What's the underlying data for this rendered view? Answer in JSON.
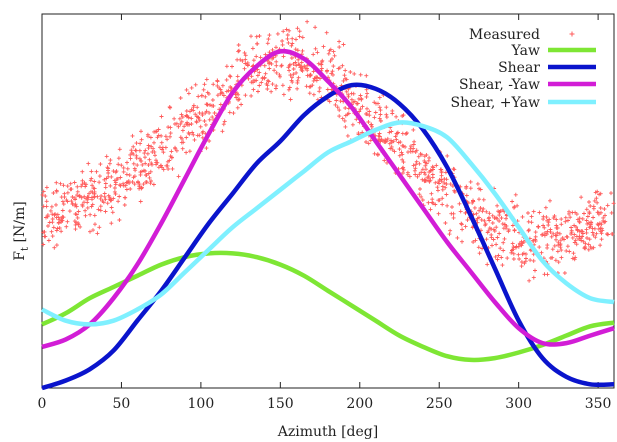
{
  "chart_data": {
    "type": "line",
    "xlabel": "Azimuth [deg]",
    "ylabel_main": "F",
    "ylabel_sub": "t",
    "ylabel_rest": " [N/m]",
    "xlim": [
      0,
      360
    ],
    "ylim": [
      0,
      100
    ],
    "x_ticks": [
      0,
      50,
      100,
      150,
      200,
      250,
      300,
      350
    ],
    "y_ticks_labeled": false,
    "grid": false,
    "legend_position": "top-right",
    "series": [
      {
        "name": "Measured",
        "style": "points",
        "color": "#ff5a5a",
        "noise_note": "scatter of red + markers following a broad hump",
        "x": [
          0,
          10,
          20,
          30,
          40,
          50,
          60,
          70,
          80,
          90,
          100,
          110,
          120,
          130,
          140,
          150,
          160,
          170,
          180,
          190,
          200,
          210,
          220,
          230,
          240,
          250,
          260,
          270,
          280,
          290,
          300,
          310,
          320,
          330,
          340,
          350,
          360
        ],
        "y": [
          46,
          47,
          49,
          50,
          53,
          55,
          59,
          62,
          65,
          69,
          72,
          76,
          80,
          84,
          86,
          87,
          87,
          86,
          84,
          80,
          75,
          70,
          66,
          62,
          58,
          54,
          50,
          47,
          44,
          42,
          41,
          40,
          40,
          41,
          42,
          44,
          46
        ]
      },
      {
        "name": "Yaw",
        "style": "line",
        "color": "#7ee634",
        "x": [
          0,
          15,
          30,
          45,
          60,
          75,
          90,
          105,
          120,
          135,
          150,
          165,
          180,
          195,
          210,
          225,
          240,
          255,
          270,
          285,
          300,
          315,
          330,
          345,
          360
        ],
        "y": [
          17,
          20,
          24,
          27,
          30,
          33,
          35,
          36,
          36,
          35,
          33,
          30,
          26,
          22,
          18,
          14,
          11,
          8.5,
          7.5,
          8,
          9.5,
          11.5,
          14,
          16.5,
          17.5
        ]
      },
      {
        "name": "Shear",
        "style": "line",
        "color": "#0a14cc",
        "x": [
          0,
          15,
          30,
          45,
          60,
          75,
          90,
          105,
          120,
          135,
          150,
          165,
          180,
          195,
          210,
          225,
          240,
          255,
          270,
          285,
          300,
          315,
          330,
          345,
          360
        ],
        "y": [
          0,
          2,
          5,
          10,
          18,
          26,
          35,
          44,
          52,
          60,
          66,
          73,
          78,
          81,
          80,
          76,
          69,
          59,
          46,
          32,
          18,
          8,
          3,
          1,
          1
        ]
      },
      {
        "name": "Shear, -Yaw",
        "style": "line",
        "color": "#d21dd6",
        "x": [
          0,
          15,
          30,
          45,
          60,
          75,
          90,
          105,
          120,
          135,
          150,
          165,
          180,
          195,
          210,
          225,
          240,
          255,
          270,
          285,
          300,
          315,
          330,
          345,
          360
        ],
        "y": [
          11,
          13,
          17,
          24,
          33,
          44,
          56,
          68,
          79,
          86,
          90,
          88,
          82,
          75,
          66,
          57,
          48,
          39,
          31,
          23,
          16,
          12,
          12,
          14,
          16
        ]
      },
      {
        "name": "Shear, +Yaw",
        "style": "line",
        "color": "#7ff0ff",
        "x": [
          0,
          15,
          30,
          45,
          60,
          75,
          90,
          105,
          120,
          135,
          150,
          165,
          180,
          195,
          210,
          225,
          240,
          255,
          270,
          285,
          300,
          315,
          330,
          345,
          360
        ],
        "y": [
          21,
          18,
          17,
          18,
          21,
          25,
          31,
          37,
          43,
          48,
          53,
          58,
          63,
          66,
          69,
          71,
          70,
          67,
          60,
          52,
          43,
          34,
          28,
          24,
          23
        ]
      }
    ]
  }
}
